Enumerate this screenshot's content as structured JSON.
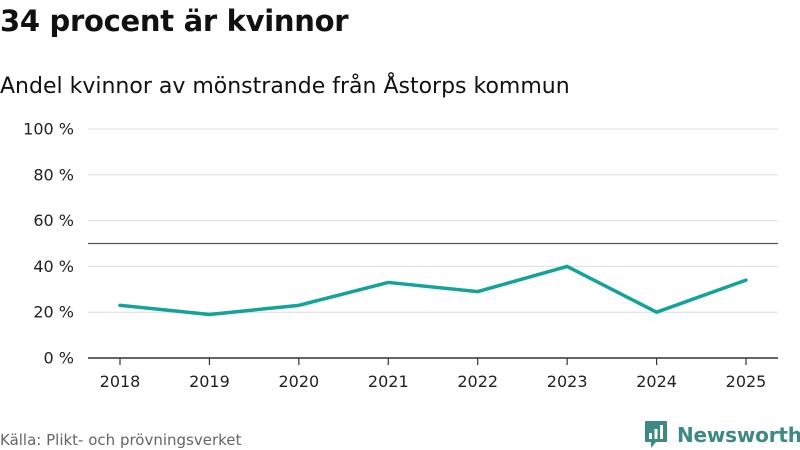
{
  "header": {
    "title": "34 procent är kvinnor",
    "subtitle": "Andel kvinnor av mönstrande från Åstorps kommun"
  },
  "footer": {
    "source": "Källa: Plikt- och prövningsverket",
    "brand_name": "Newsworthy",
    "brand_icon": "newsworthy-logo-icon"
  },
  "colors": {
    "series": "#12a39a",
    "reference_line": "#555555",
    "grid": "#dddddd",
    "axis": "#333333",
    "brand": "#3d8a84"
  },
  "chart_data": {
    "type": "line",
    "title": "34 procent är kvinnor",
    "subtitle": "Andel kvinnor av mönstrande från Åstorps kommun",
    "xlabel": "",
    "ylabel": "",
    "categories": [
      "2018",
      "2019",
      "2020",
      "2021",
      "2022",
      "2023",
      "2024",
      "2025"
    ],
    "series": [
      {
        "values": [
          23,
          19,
          23,
          33,
          29,
          40,
          20,
          34
        ]
      }
    ],
    "reference_line": 50,
    "ylim": [
      0,
      100
    ],
    "yticks": [
      0,
      20,
      40,
      60,
      80,
      100
    ],
    "ytick_labels": [
      "0 %",
      "20 %",
      "40 %",
      "60 %",
      "80 %",
      "100 %"
    ],
    "grid": true,
    "legend": "none"
  }
}
